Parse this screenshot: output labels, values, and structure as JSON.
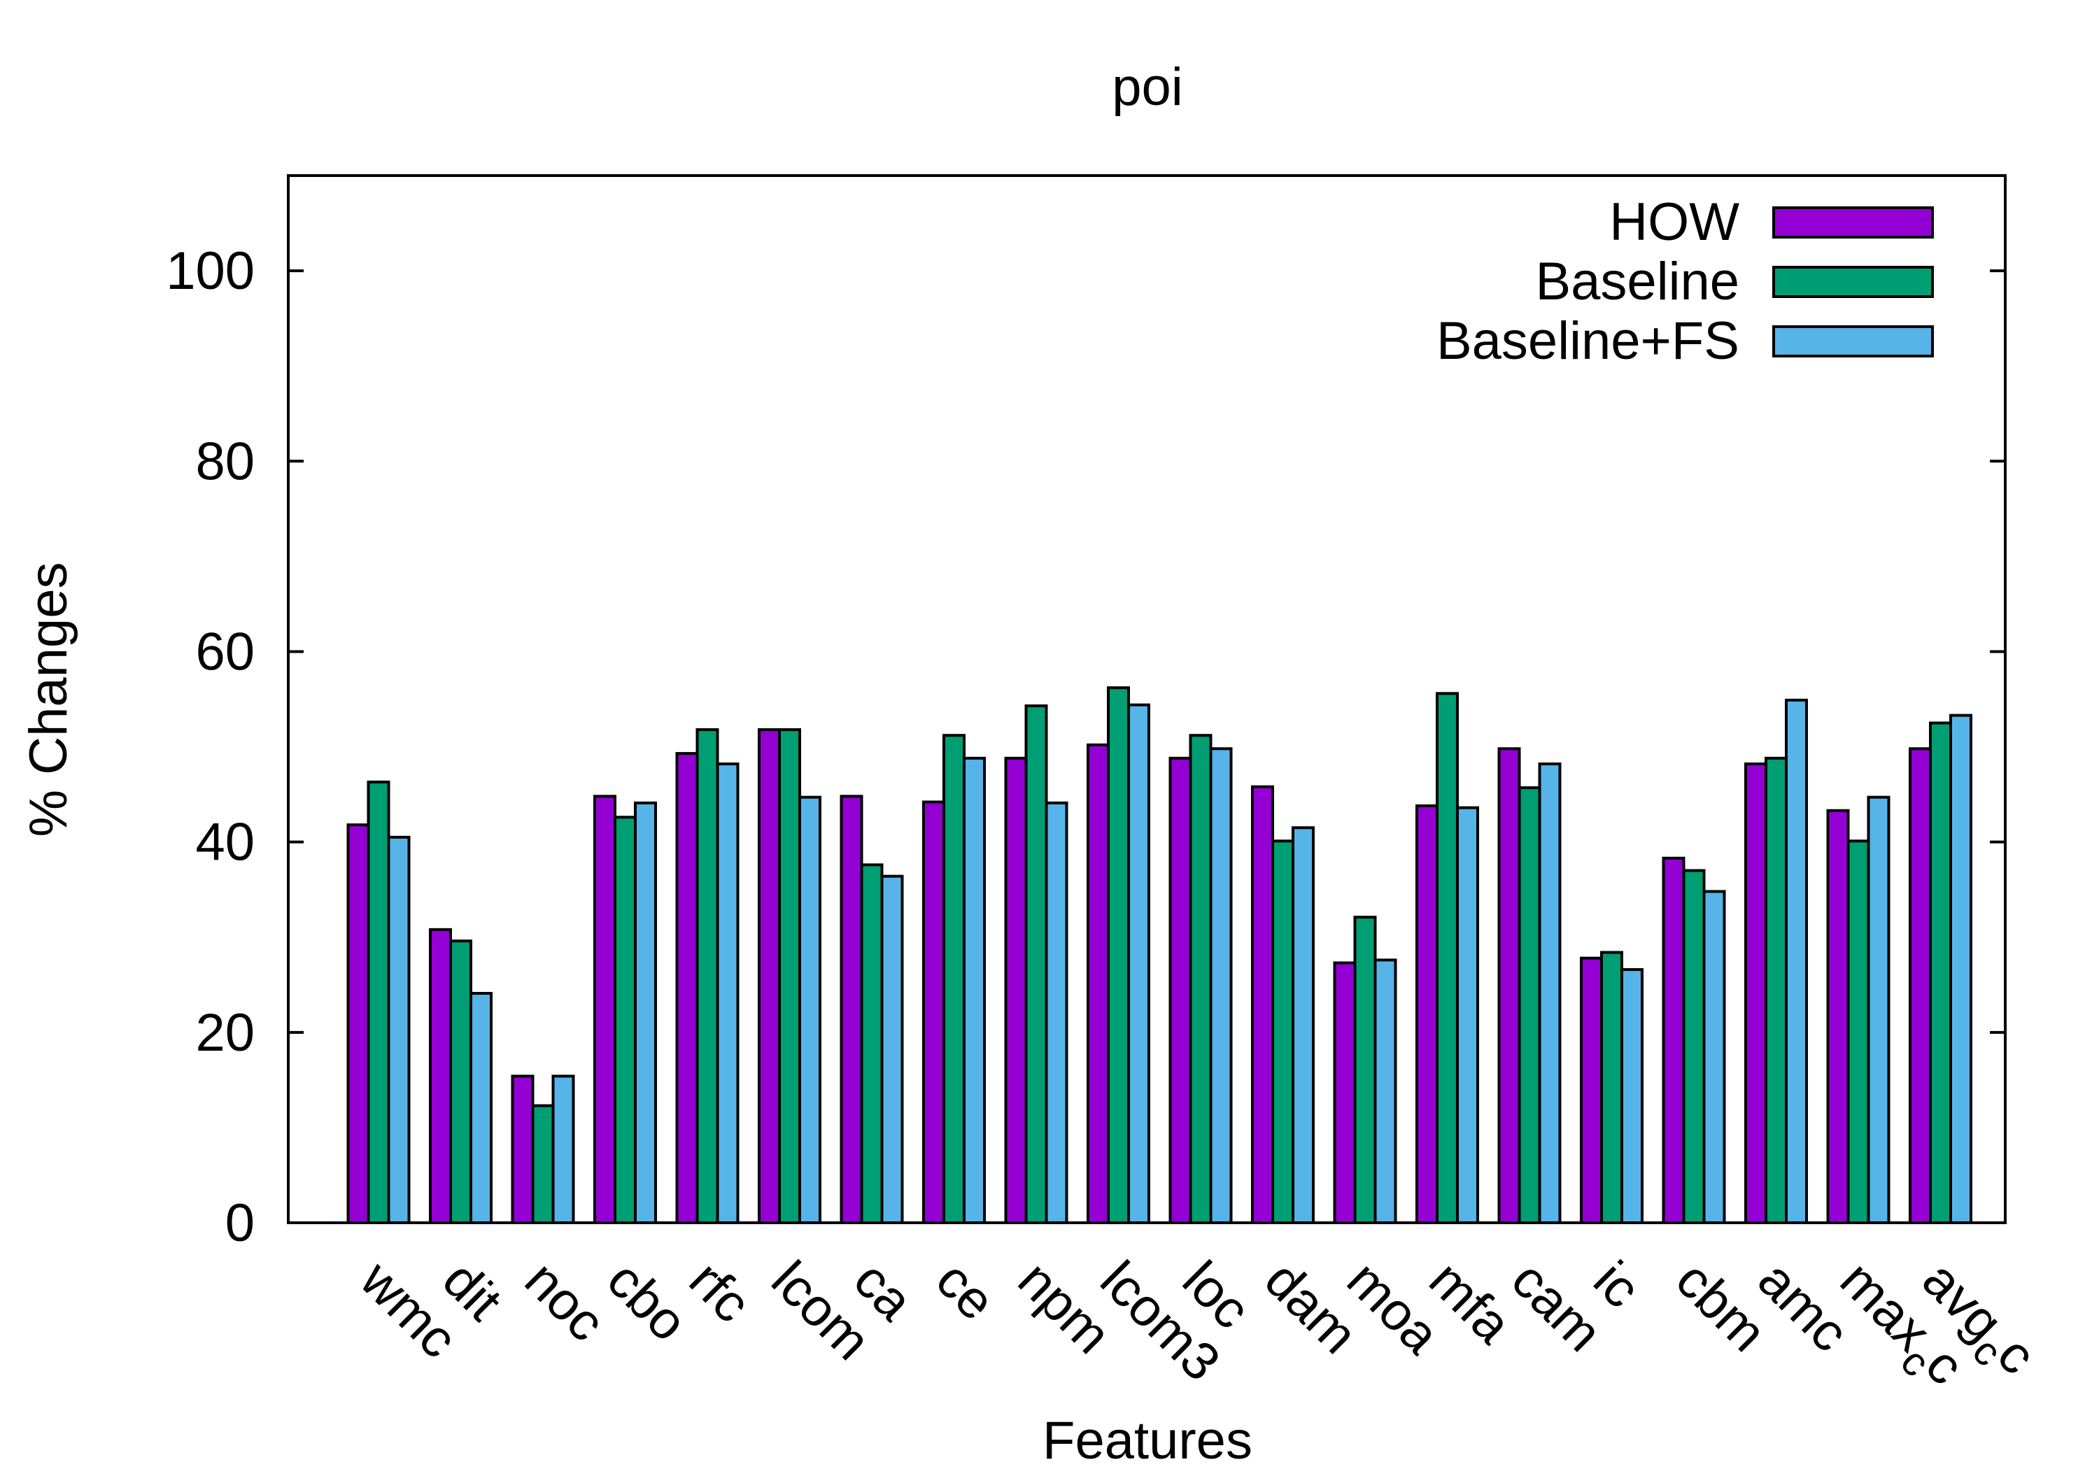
{
  "chart_data": {
    "type": "bar",
    "title": "poi",
    "xlabel": "Features",
    "ylabel": "% Changes",
    "ylim": [
      0,
      110
    ],
    "yticks": [
      0,
      20,
      40,
      60,
      80,
      100
    ],
    "grid": false,
    "legend_position": "top-right",
    "categories": [
      {
        "base": "wmc",
        "sub": ""
      },
      {
        "base": "dit",
        "sub": ""
      },
      {
        "base": "noc",
        "sub": ""
      },
      {
        "base": "cbo",
        "sub": ""
      },
      {
        "base": "rfc",
        "sub": ""
      },
      {
        "base": "lcom",
        "sub": ""
      },
      {
        "base": "ca",
        "sub": ""
      },
      {
        "base": "ce",
        "sub": ""
      },
      {
        "base": "npm",
        "sub": ""
      },
      {
        "base": "lcom3",
        "sub": ""
      },
      {
        "base": "loc",
        "sub": ""
      },
      {
        "base": "dam",
        "sub": ""
      },
      {
        "base": "moa",
        "sub": ""
      },
      {
        "base": "mfa",
        "sub": ""
      },
      {
        "base": "cam",
        "sub": ""
      },
      {
        "base": "ic",
        "sub": ""
      },
      {
        "base": "cbm",
        "sub": ""
      },
      {
        "base": "amc",
        "sub": ""
      },
      {
        "base": "max",
        "sub": "c",
        "tail": "c"
      },
      {
        "base": "avg",
        "sub": "c",
        "tail": "c"
      }
    ],
    "series": [
      {
        "name": "HOW",
        "color": "#9400d3",
        "values": [
          41.8,
          30.8,
          15.4,
          44.8,
          49.3,
          51.8,
          44.8,
          44.2,
          48.8,
          50.2,
          48.8,
          45.8,
          27.3,
          43.8,
          49.8,
          27.8,
          38.3,
          48.2,
          43.3,
          49.8
        ]
      },
      {
        "name": "Baseline",
        "color": "#009e73",
        "values": [
          46.3,
          29.6,
          12.3,
          42.6,
          51.8,
          51.8,
          37.6,
          51.2,
          54.3,
          56.2,
          51.2,
          40.1,
          32.1,
          55.6,
          45.7,
          28.4,
          37.0,
          48.8,
          40.1,
          52.5
        ]
      },
      {
        "name": "Baseline+FS",
        "color": "#56b4e9",
        "values": [
          40.5,
          24.1,
          15.4,
          44.1,
          48.2,
          44.7,
          36.4,
          48.8,
          44.1,
          54.4,
          49.8,
          41.5,
          27.6,
          43.6,
          48.2,
          26.6,
          34.8,
          54.9,
          44.7,
          53.3
        ]
      }
    ]
  }
}
